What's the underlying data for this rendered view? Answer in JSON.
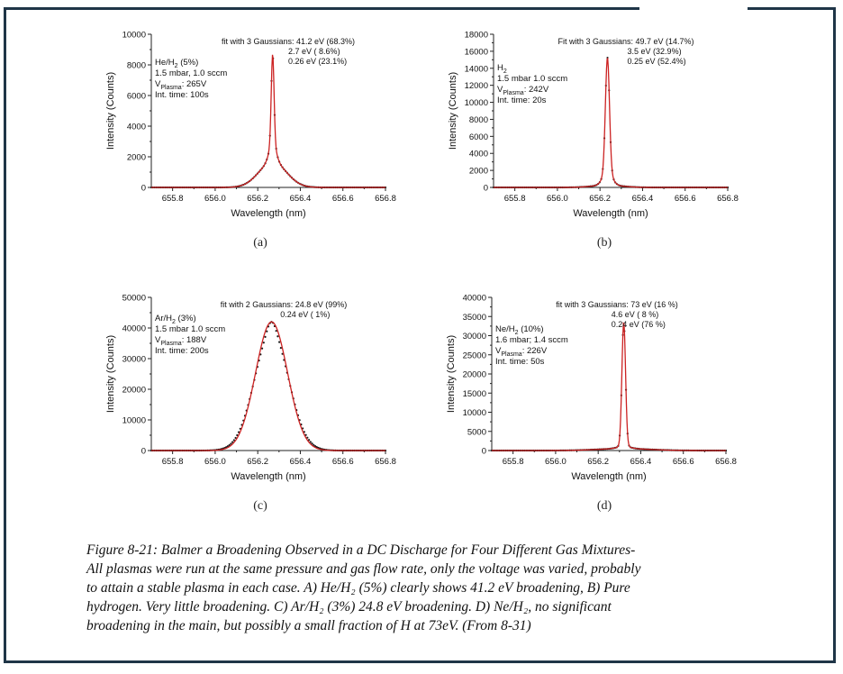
{
  "chart_data": [
    {
      "type": "line",
      "xlabel": "Wavelength (nm)",
      "ylabel": "Intensity (Counts)",
      "xlim": [
        655.7,
        656.8
      ],
      "ylim": [
        0,
        10000
      ],
      "x_ticks": [
        "655.8",
        "656.0",
        "656.2",
        "656.4",
        "656.6",
        "656.8"
      ],
      "y_ticks": [
        "0",
        "2000",
        "4000",
        "6000",
        "8000",
        "10000"
      ],
      "panel_label": "(a)",
      "fit_lines": [
        "fit with 3 Gaussians: 41.2  eV (68.3%)",
        "2.7  eV ( 8.6%)",
        "0.26 eV (23.1%)"
      ],
      "sample_lines": [
        "He/H",
        "2",
        " (5%)",
        "1.5 mbar, 1.0 sccm",
        "V",
        "Plasma",
        ": 265V",
        "Int. time: 100s"
      ],
      "components": [
        {
          "center": 656.27,
          "sigma": 0.065,
          "amplitude": 1650
        },
        {
          "center": 656.27,
          "sigma": 0.017,
          "amplitude": 1150
        },
        {
          "center": 656.27,
          "sigma": 0.0065,
          "amplitude": 5900
        }
      ]
    },
    {
      "type": "line",
      "xlabel": "Wavelength (nm)",
      "ylabel": "Intensity (Counts)",
      "xlim": [
        655.7,
        656.8
      ],
      "ylim": [
        0,
        18000
      ],
      "x_ticks": [
        "655.8",
        "656.0",
        "656.2",
        "656.4",
        "656.6",
        "656.8"
      ],
      "y_ticks": [
        "0",
        "2000",
        "4000",
        "6000",
        "8000",
        "10000",
        "12000",
        "14000",
        "16000",
        "18000"
      ],
      "panel_label": "(b)",
      "fit_lines": [
        "Fit with 3 Gaussians: 49.7  eV  (14.7%)",
        "3.5  eV  (32.9%)",
        "0.25 eV  (52.4%)"
      ],
      "sample_lines": [
        "H",
        "2",
        "",
        "1.5 mbar 1.0 sccm",
        "V",
        "Plasma",
        ": 242V",
        "Int. time: 20s"
      ],
      "components": [
        {
          "center": 656.235,
          "sigma": 0.07,
          "amplitude": 250
        },
        {
          "center": 656.235,
          "sigma": 0.022,
          "amplitude": 1500
        },
        {
          "center": 656.235,
          "sigma": 0.0095,
          "amplitude": 13500
        }
      ]
    },
    {
      "type": "line",
      "xlabel": "Wavelength (nm)",
      "ylabel": "Intensity (Counts)",
      "xlim": [
        655.7,
        656.8
      ],
      "ylim": [
        0,
        50000
      ],
      "x_ticks": [
        "655.8",
        "656.0",
        "656.2",
        "656.4",
        "656.6",
        "656.8"
      ],
      "y_ticks": [
        "0",
        "10000",
        "20000",
        "30000",
        "40000",
        "50000"
      ],
      "panel_label": "(c)",
      "fit_lines": [
        "fit with 2 Gaussians: 24.8  eV (99%)",
        "0.24 eV (  1%)"
      ],
      "sample_lines": [
        "Ar/H",
        "2",
        "  (3%)",
        "1.5 mbar 1.0 sccm",
        "V",
        "Plasma",
        ": 188V",
        "Int. time: 200s"
      ],
      "components": [
        {
          "center": 656.265,
          "sigma": 0.075,
          "amplitude": 42000
        }
      ],
      "data_components": [
        {
          "center": 656.265,
          "sigma": 0.08,
          "amplitude": 38500
        },
        {
          "center": 656.265,
          "sigma": 0.02,
          "amplitude": 3500
        }
      ]
    },
    {
      "type": "line",
      "xlabel": "Wavelength (nm)",
      "ylabel": "Intensity (Counts)",
      "xlim": [
        655.7,
        656.8
      ],
      "ylim": [
        0,
        40000
      ],
      "x_ticks": [
        "655.8",
        "656.0",
        "656.2",
        "656.4",
        "656.6",
        "656.8"
      ],
      "y_ticks": [
        "0",
        "5000",
        "10000",
        "15000",
        "20000",
        "25000",
        "30000",
        "35000",
        "40000"
      ],
      "panel_label": "(d)",
      "fit_lines": [
        "fit with 3 Gaussians:  73   eV (16 %)",
        "4.6   eV (  8 %)",
        "0.24 eV (76 %)"
      ],
      "sample_lines": [
        "Ne/H",
        "2",
        " (10%)",
        "1.6 mbar; 1.4 sccm",
        "V",
        "Plasma",
        ": 226V",
        "Int. time: 50s"
      ],
      "components": [
        {
          "center": 656.32,
          "sigma": 0.12,
          "amplitude": 500
        },
        {
          "center": 656.32,
          "sigma": 0.03,
          "amplitude": 600
        },
        {
          "center": 656.32,
          "sigma": 0.0085,
          "amplitude": 32500
        }
      ]
    }
  ],
  "caption": {
    "lines": [
      "Figure 8-21:  Balmer a Broadening Observed in a DC Discharge for Four Different Gas Mixtures-",
      "All plasmas were run at the same pressure and gas flow rate, only the voltage was varied, probably",
      "to attain a stable plasma in each case. A) He/H₂ (5%) clearly shows 41.2 eV broadening, B) Pure",
      "hydrogen.  Very little broadening.  C) Ar/H₂ (3%) 24.8 eV broadening. D) Ne/H₂, no significant",
      "broadening in the main, but possibly a small fraction of H at 73eV. (From 8-31)"
    ]
  },
  "colors": {
    "data": "#1a1a1a",
    "fit": "#cc2222",
    "axis": "#222222",
    "frame": "#1f3547"
  }
}
